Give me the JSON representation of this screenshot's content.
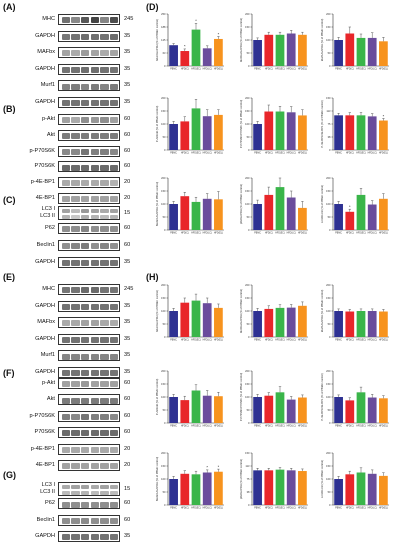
{
  "panels": {
    "A": {
      "label": "(A)",
      "rows": [
        {
          "name": "MHC",
          "kda": "245",
          "band": "#3a3a3a",
          "levels": [
            0.72,
            0.6,
            0.85,
            0.95,
            0.62,
            0.9
          ]
        },
        {
          "name": "GAPDH",
          "kda": "35",
          "band": "#3d3d3d",
          "levels": [
            0.7,
            0.72,
            0.75,
            0.74,
            0.72,
            0.76
          ]
        },
        {
          "name": "MAFbx",
          "kda": "35",
          "band": "#5a5a5a",
          "levels": [
            0.55,
            0.5,
            0.6,
            0.55,
            0.5,
            0.55
          ]
        },
        {
          "name": "GAPDH",
          "kda": "35",
          "band": "#3d3d3d",
          "levels": [
            0.72,
            0.72,
            0.74,
            0.74,
            0.72,
            0.72
          ]
        },
        {
          "name": "Murf1",
          "kda": "35",
          "band": "#444",
          "levels": [
            0.66,
            0.7,
            0.65,
            0.7,
            0.66,
            0.7
          ]
        },
        {
          "name": "GAPDH",
          "kda": "35",
          "band": "#3d3d3d",
          "levels": [
            0.72,
            0.72,
            0.72,
            0.72,
            0.72,
            0.72
          ]
        }
      ]
    },
    "B": {
      "label": "(B)",
      "rows": [
        {
          "name": "p-Akt",
          "kda": "60",
          "band": "#444",
          "levels": [
            0.5,
            0.45,
            0.6,
            0.55,
            0.6,
            0.5
          ]
        },
        {
          "name": "Akt",
          "kda": "60",
          "band": "#444",
          "levels": [
            0.7,
            0.7,
            0.7,
            0.7,
            0.7,
            0.7
          ]
        },
        {
          "name": "p-P70S6K",
          "kda": "60",
          "band": "#3a3a3a",
          "levels": [
            0.6,
            0.6,
            0.7,
            0.65,
            0.65,
            0.6
          ]
        },
        {
          "name": "P70S6K",
          "kda": "60",
          "band": "#3a3a3a",
          "levels": [
            0.75,
            0.75,
            0.75,
            0.75,
            0.75,
            0.75
          ]
        },
        {
          "name": "p-4E-BP1",
          "kda": "20",
          "band": "#555",
          "levels": [
            0.5,
            0.5,
            0.5,
            0.5,
            0.5,
            0.45
          ]
        },
        {
          "name": "4E-BP1",
          "kda": "20",
          "band": "#555",
          "levels": [
            0.55,
            0.55,
            0.55,
            0.55,
            0.55,
            0.55
          ]
        }
      ]
    },
    "C": {
      "label": "(C)",
      "rows": [
        {
          "name": "LC3 I\nLC3 II",
          "kda": "15",
          "band": "#555",
          "levels": [
            0.55,
            0.4,
            0.6,
            0.55,
            0.5,
            0.55
          ],
          "tall": true
        },
        {
          "name": "P62",
          "kda": "60",
          "band": "#444",
          "levels": [
            0.6,
            0.6,
            0.65,
            0.6,
            0.6,
            0.6
          ]
        },
        {
          "name": "Beclin1",
          "kda": "60",
          "band": "#444",
          "levels": [
            0.6,
            0.65,
            0.7,
            0.6,
            0.65,
            0.6
          ]
        },
        {
          "name": "GAPDH",
          "kda": "35",
          "band": "#3d3d3d",
          "levels": [
            0.72,
            0.72,
            0.72,
            0.72,
            0.72,
            0.72
          ]
        }
      ]
    },
    "E": {
      "label": "(E)",
      "rows": [
        {
          "name": "MHC",
          "kda": "245",
          "band": "#3a3a3a",
          "levels": [
            0.7,
            0.7,
            0.75,
            0.75,
            0.7,
            0.7
          ]
        },
        {
          "name": "GAPDH",
          "kda": "35",
          "band": "#3d3d3d",
          "levels": [
            0.72,
            0.72,
            0.72,
            0.72,
            0.72,
            0.72
          ]
        },
        {
          "name": "MAFbx",
          "kda": "35",
          "band": "#555",
          "levels": [
            0.5,
            0.5,
            0.55,
            0.55,
            0.5,
            0.5
          ]
        },
        {
          "name": "GAPDH",
          "kda": "35",
          "band": "#3d3d3d",
          "levels": [
            0.72,
            0.72,
            0.72,
            0.72,
            0.72,
            0.72
          ]
        },
        {
          "name": "Murf1",
          "kda": "35",
          "band": "#444",
          "levels": [
            0.65,
            0.65,
            0.65,
            0.65,
            0.65,
            0.65
          ]
        },
        {
          "name": "GAPDH",
          "kda": "35",
          "band": "#3d3d3d",
          "levels": [
            0.72,
            0.72,
            0.72,
            0.72,
            0.72,
            0.72
          ]
        }
      ]
    },
    "F": {
      "label": "(F)",
      "rows": [
        {
          "name": "p-Akt",
          "kda": "60",
          "band": "#444",
          "levels": [
            0.5,
            0.5,
            0.55,
            0.5,
            0.5,
            0.5
          ]
        },
        {
          "name": "Akt",
          "kda": "60",
          "band": "#444",
          "levels": [
            0.7,
            0.7,
            0.7,
            0.7,
            0.7,
            0.7
          ]
        },
        {
          "name": "p-P70S6K",
          "kda": "60",
          "band": "#3a3a3a",
          "levels": [
            0.65,
            0.6,
            0.7,
            0.65,
            0.65,
            0.6
          ]
        },
        {
          "name": "P70S6K",
          "kda": "60",
          "band": "#3a3a3a",
          "levels": [
            0.75,
            0.75,
            0.75,
            0.75,
            0.75,
            0.75
          ]
        },
        {
          "name": "p-4E-BP1",
          "kda": "20",
          "band": "#555",
          "levels": [
            0.5,
            0.5,
            0.5,
            0.5,
            0.5,
            0.5
          ]
        },
        {
          "name": "4E-BP1",
          "kda": "20",
          "band": "#555",
          "levels": [
            0.55,
            0.55,
            0.55,
            0.55,
            0.55,
            0.55
          ]
        }
      ]
    },
    "G": {
      "label": "(G)",
      "rows": [
        {
          "name": "LC3 I\nLC3 II",
          "kda": "15",
          "band": "#555",
          "levels": [
            0.5,
            0.55,
            0.55,
            0.5,
            0.55,
            0.5
          ],
          "tall": true
        },
        {
          "name": "P62",
          "kda": "60",
          "band": "#444",
          "levels": [
            0.6,
            0.6,
            0.6,
            0.6,
            0.6,
            0.6
          ]
        },
        {
          "name": "Beclin1",
          "kda": "60",
          "band": "#444",
          "levels": [
            0.6,
            0.6,
            0.62,
            0.6,
            0.6,
            0.6
          ]
        },
        {
          "name": "GAPDH",
          "kda": "35",
          "band": "#3d3d3d",
          "levels": [
            0.72,
            0.72,
            0.72,
            0.72,
            0.72,
            0.72
          ]
        }
      ]
    },
    "D": {
      "label": "(D)"
    },
    "H": {
      "label": "(H)"
    }
  },
  "colors": {
    "bars": [
      "#2e3192",
      "#e8262a",
      "#3ab54a",
      "#6a4c9c",
      "#f7931e"
    ],
    "error": "#555555",
    "axis": "#333333"
  },
  "chart_data": [
    {
      "type": "bar",
      "panel": "D",
      "ylabel": "MHC/GAPDH (% of PBMC control)",
      "ylim": [
        0,
        250
      ],
      "values": [
        100,
        72,
        175,
        85,
        130
      ],
      "err": [
        8,
        10,
        30,
        12,
        12
      ],
      "stars": [
        1,
        2,
        2,
        4
      ]
    },
    {
      "type": "bar",
      "panel": "D",
      "ylabel": "MAFbx/GAPDH (% of PBMC control)",
      "ylim": [
        0,
        200
      ],
      "values": [
        100,
        120,
        120,
        125,
        120
      ],
      "err": [
        8,
        10,
        10,
        12,
        10
      ],
      "stars": []
    },
    {
      "type": "bar",
      "panel": "D",
      "ylabel": "Murf1/GAPDH (% of PBMC control)",
      "ylim": [
        0,
        200
      ],
      "values": [
        100,
        125,
        108,
        108,
        95
      ],
      "err": [
        10,
        25,
        15,
        20,
        15
      ],
      "stars": []
    },
    {
      "type": "bar",
      "panel": "D",
      "ylabel": "P-Akt/Akt (% of PBMC control)",
      "ylim": [
        0,
        200
      ],
      "values": [
        100,
        110,
        160,
        130,
        135
      ],
      "err": [
        10,
        18,
        35,
        25,
        20
      ],
      "stars": []
    },
    {
      "type": "bar",
      "panel": "D",
      "ylabel": "P-P70S6K/P70S6K (% of PBMC control)",
      "ylim": [
        0,
        200
      ],
      "values": [
        100,
        148,
        148,
        145,
        133
      ],
      "err": [
        10,
        25,
        20,
        22,
        22
      ],
      "stars": []
    },
    {
      "type": "bar",
      "panel": "D",
      "ylabel": "P-4E-BP1/4E-BP1 (% of PBMC control)",
      "ylim": [
        0,
        150
      ],
      "values": [
        100,
        100,
        100,
        97,
        85
      ],
      "err": [
        6,
        8,
        8,
        8,
        6
      ],
      "stars": [
        4
      ]
    },
    {
      "type": "bar",
      "panel": "D",
      "ylabel": "Beclin1/GAPDH (% of PBMC control)",
      "ylim": [
        0,
        200
      ],
      "values": [
        100,
        130,
        108,
        120,
        118
      ],
      "err": [
        10,
        15,
        18,
        20,
        30
      ],
      "stars": []
    },
    {
      "type": "bar",
      "panel": "D",
      "ylabel": "p62/GAPDH (% of PBMC control)",
      "ylim": [
        0,
        200
      ],
      "values": [
        100,
        135,
        165,
        125,
        85
      ],
      "err": [
        15,
        30,
        35,
        25,
        25
      ],
      "stars": []
    },
    {
      "type": "bar",
      "panel": "D",
      "ylabel": "LC3II/LC3I (% of PBMC control)",
      "ylim": [
        0,
        200
      ],
      "values": [
        100,
        70,
        135,
        98,
        120
      ],
      "err": [
        10,
        10,
        25,
        15,
        20
      ],
      "stars": [
        1
      ]
    },
    {
      "type": "bar",
      "panel": "H",
      "ylabel": "MHC/GAPDH (% of PBMC control)",
      "ylim": [
        0,
        200
      ],
      "values": [
        100,
        132,
        140,
        130,
        112
      ],
      "err": [
        10,
        18,
        25,
        20,
        15
      ],
      "stars": []
    },
    {
      "type": "bar",
      "panel": "H",
      "ylabel": "MAFbx/GAPDH (% of PBMC control)",
      "ylim": [
        0,
        200
      ],
      "values": [
        100,
        108,
        112,
        113,
        120
      ],
      "err": [
        10,
        12,
        12,
        12,
        15
      ],
      "stars": []
    },
    {
      "type": "bar",
      "panel": "H",
      "ylabel": "Murf1/GAPDH (% of PBMC control)",
      "ylim": [
        0,
        200
      ],
      "values": [
        100,
        98,
        100,
        100,
        98
      ],
      "err": [
        8,
        8,
        8,
        8,
        8
      ],
      "stars": []
    },
    {
      "type": "bar",
      "panel": "H",
      "ylabel": "P-Akt/Akt (% of PBMC control)",
      "ylim": [
        0,
        200
      ],
      "values": [
        100,
        88,
        125,
        105,
        103
      ],
      "err": [
        10,
        15,
        22,
        20,
        15
      ],
      "stars": []
    },
    {
      "type": "bar",
      "panel": "H",
      "ylabel": "P-P70S6K/P70S6K (% of PBMC control)",
      "ylim": [
        0,
        200
      ],
      "values": [
        100,
        105,
        118,
        90,
        98
      ],
      "err": [
        10,
        12,
        22,
        12,
        10
      ],
      "stars": []
    },
    {
      "type": "bar",
      "panel": "H",
      "ylabel": "P-4E-BP1/4E-BP1 (% of PBMC control)",
      "ylim": [
        0,
        200
      ],
      "values": [
        100,
        87,
        118,
        98,
        95
      ],
      "err": [
        8,
        10,
        20,
        12,
        10
      ],
      "stars": []
    },
    {
      "type": "bar",
      "panel": "H",
      "ylabel": "Beclin1/GAPDH (% of PBMC control)",
      "ylim": [
        0,
        200
      ],
      "values": [
        100,
        120,
        118,
        125,
        128
      ],
      "err": [
        10,
        12,
        12,
        10,
        10
      ],
      "stars": [
        3,
        4
      ]
    },
    {
      "type": "bar",
      "panel": "H",
      "ylabel": "p62/GAPDH (% of PBMC control)",
      "ylim": [
        0,
        150
      ],
      "values": [
        100,
        100,
        102,
        100,
        98
      ],
      "err": [
        6,
        6,
        6,
        6,
        6
      ],
      "stars": []
    },
    {
      "type": "bar",
      "panel": "H",
      "ylabel": "LC3II/LC3I (% of PBMC control)",
      "ylim": [
        0,
        200
      ],
      "values": [
        100,
        118,
        125,
        120,
        112
      ],
      "err": [
        10,
        12,
        18,
        15,
        12
      ],
      "stars": []
    }
  ],
  "xcats": [
    "PBMC",
    "HFD(C)",
    "HFD(EC)",
    "HFD(LC)",
    "HFD(EL)"
  ]
}
